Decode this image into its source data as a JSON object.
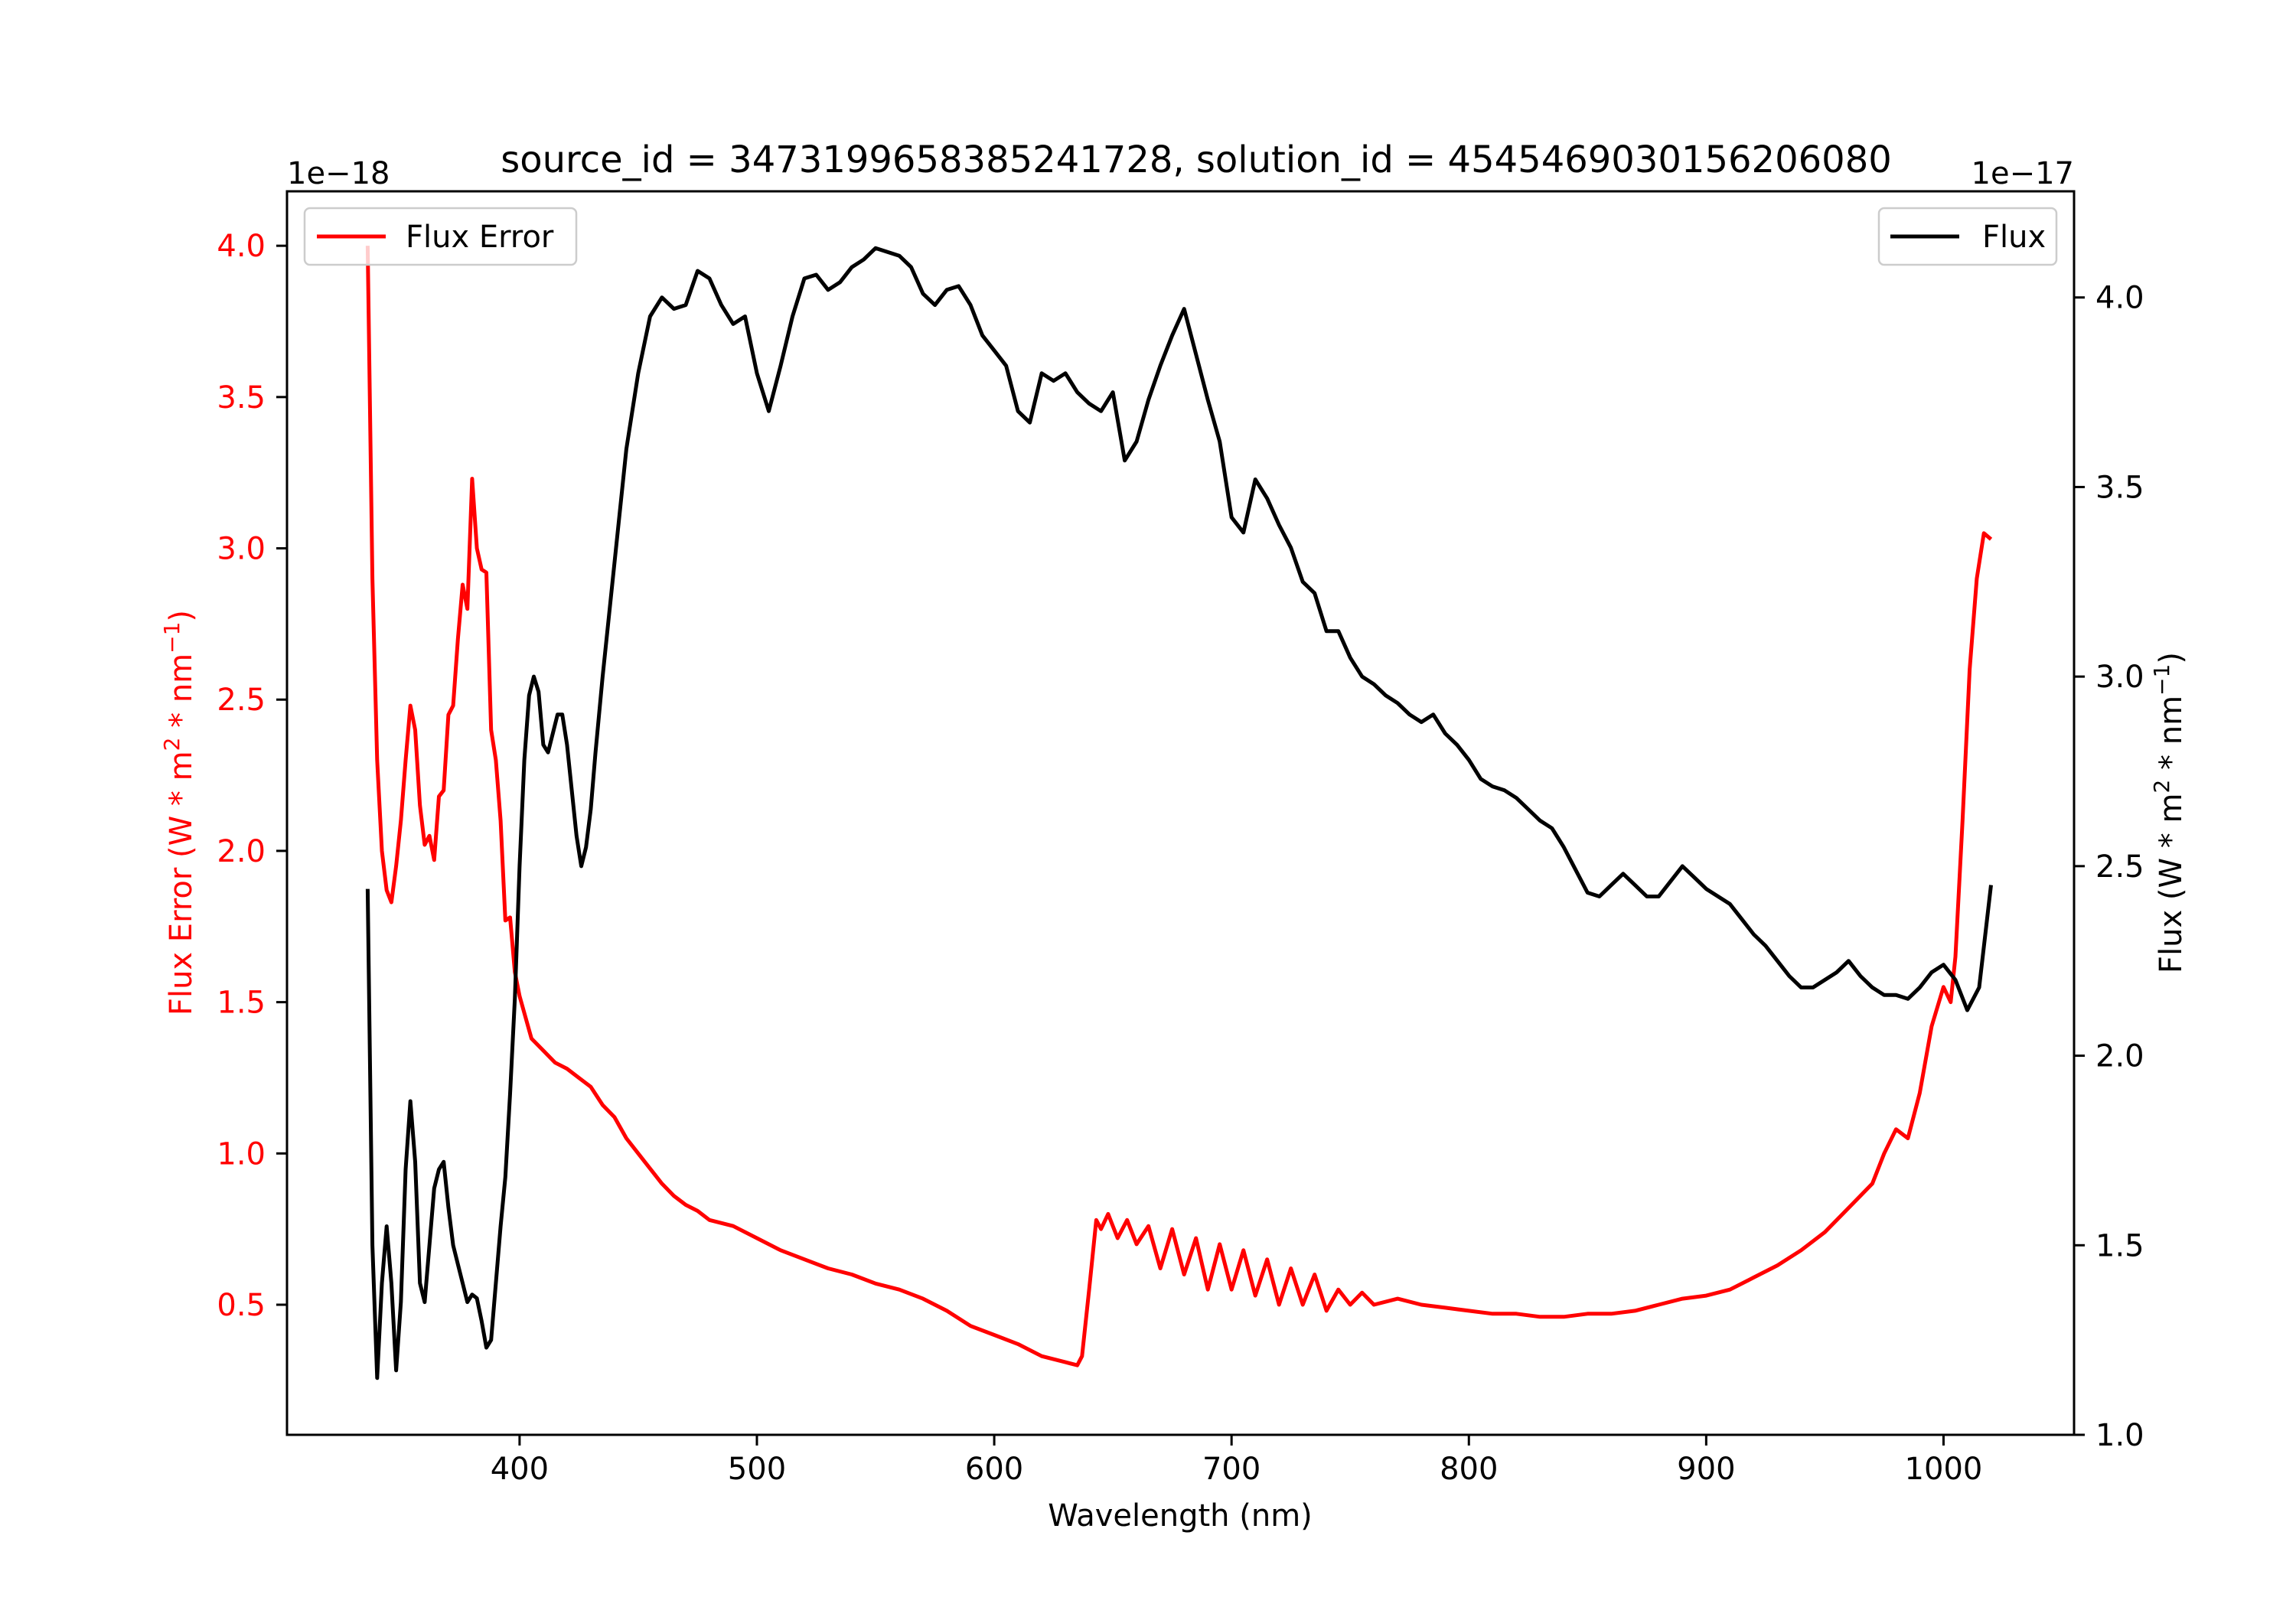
{
  "chart_data": {
    "type": "line",
    "title": "source_id = 3473199658385241728, solution_id = 4545469030156206080",
    "xlabel": "Wavelength (nm)",
    "ylabel_left": "Flux Error (W * m",
    "ylabel_left_sup": "2",
    "ylabel_left_tail": " * nm",
    "ylabel_left_sup2": "−1",
    "ylabel_left_close": ")",
    "ylabel_right": "Flux (W * m",
    "ylabel_right_sup": "2",
    "ylabel_right_tail": " * nm",
    "ylabel_right_sup2": "−1",
    "ylabel_right_close": ")",
    "left_offset_text": "1e−18",
    "right_offset_text": "1e−17",
    "xlim": [
      302,
      1055
    ],
    "ylim_left": [
      0.07,
      4.18
    ],
    "ylim_right": [
      1.0,
      4.28
    ],
    "xticks": [
      400,
      500,
      600,
      700,
      800,
      900,
      1000
    ],
    "xtick_labels": [
      "400",
      "500",
      "600",
      "700",
      "800",
      "900",
      "1000"
    ],
    "yticks_left": [
      0.5,
      1.0,
      1.5,
      2.0,
      2.5,
      3.0,
      3.5,
      4.0
    ],
    "ytick_labels_left": [
      "0.5",
      "1.0",
      "1.5",
      "2.0",
      "2.5",
      "3.0",
      "3.5",
      "4.0"
    ],
    "yticks_right": [
      1.0,
      1.5,
      2.0,
      2.5,
      3.0,
      3.5,
      4.0
    ],
    "ytick_labels_right": [
      "1.0",
      "1.5",
      "2.0",
      "2.5",
      "3.0",
      "3.5",
      "4.0"
    ],
    "legend_left": {
      "label": "Flux Error",
      "placement": "upper left"
    },
    "legend_right": {
      "label": "Flux",
      "placement": "upper right"
    },
    "grid": false,
    "series": [
      {
        "name": "Flux Error",
        "axis": "left",
        "color": "#ff0000",
        "x": [
          336,
          338,
          340,
          342,
          344,
          346,
          348,
          350,
          352,
          354,
          356,
          358,
          360,
          362,
          364,
          366,
          368,
          370,
          372,
          374,
          376,
          378,
          380,
          382,
          384,
          386,
          388,
          390,
          392,
          394,
          396,
          398,
          400,
          405,
          410,
          415,
          420,
          425,
          430,
          435,
          440,
          445,
          450,
          455,
          460,
          465,
          470,
          475,
          480,
          490,
          500,
          510,
          520,
          530,
          540,
          550,
          560,
          570,
          580,
          590,
          600,
          610,
          620,
          630,
          635,
          637,
          640,
          643,
          645,
          648,
          652,
          656,
          660,
          665,
          670,
          675,
          680,
          685,
          690,
          695,
          700,
          705,
          710,
          715,
          720,
          725,
          730,
          735,
          740,
          745,
          750,
          755,
          760,
          770,
          780,
          790,
          800,
          810,
          820,
          830,
          840,
          850,
          860,
          870,
          880,
          890,
          900,
          910,
          920,
          930,
          940,
          950,
          960,
          970,
          975,
          980,
          985,
          990,
          995,
          1000,
          1003,
          1005,
          1008,
          1011,
          1014,
          1017,
          1020
        ],
        "y": [
          4.0,
          2.9,
          2.3,
          2.0,
          1.87,
          1.83,
          1.95,
          2.1,
          2.3,
          2.48,
          2.4,
          2.15,
          2.02,
          2.05,
          1.97,
          2.18,
          2.2,
          2.45,
          2.48,
          2.7,
          2.88,
          2.8,
          3.23,
          3.0,
          2.93,
          2.92,
          2.4,
          2.3,
          2.1,
          1.77,
          1.78,
          1.6,
          1.52,
          1.38,
          1.34,
          1.3,
          1.28,
          1.25,
          1.22,
          1.16,
          1.12,
          1.05,
          1.0,
          0.95,
          0.9,
          0.86,
          0.83,
          0.81,
          0.78,
          0.76,
          0.72,
          0.68,
          0.65,
          0.62,
          0.6,
          0.57,
          0.55,
          0.52,
          0.48,
          0.43,
          0.4,
          0.37,
          0.33,
          0.31,
          0.3,
          0.33,
          0.55,
          0.78,
          0.75,
          0.8,
          0.72,
          0.78,
          0.7,
          0.76,
          0.62,
          0.75,
          0.6,
          0.72,
          0.55,
          0.7,
          0.55,
          0.68,
          0.53,
          0.65,
          0.5,
          0.62,
          0.5,
          0.6,
          0.48,
          0.55,
          0.5,
          0.54,
          0.5,
          0.52,
          0.5,
          0.49,
          0.48,
          0.47,
          0.47,
          0.46,
          0.46,
          0.47,
          0.47,
          0.48,
          0.5,
          0.52,
          0.53,
          0.55,
          0.59,
          0.63,
          0.68,
          0.74,
          0.82,
          0.9,
          1.0,
          1.08,
          1.05,
          1.2,
          1.42,
          1.55,
          1.5,
          1.65,
          2.1,
          2.6,
          2.9,
          3.05,
          3.03
        ]
      },
      {
        "name": "Flux",
        "axis": "right",
        "color": "#000000",
        "x": [
          336,
          338,
          340,
          342,
          344,
          346,
          348,
          350,
          352,
          354,
          356,
          358,
          360,
          362,
          364,
          366,
          368,
          370,
          372,
          374,
          376,
          378,
          380,
          382,
          384,
          386,
          388,
          390,
          392,
          394,
          396,
          398,
          400,
          402,
          404,
          406,
          408,
          410,
          412,
          414,
          416,
          418,
          420,
          422,
          424,
          426,
          428,
          430,
          432,
          435,
          440,
          445,
          450,
          455,
          460,
          465,
          470,
          475,
          480,
          485,
          490,
          495,
          500,
          505,
          510,
          515,
          520,
          525,
          530,
          535,
          540,
          545,
          550,
          555,
          560,
          565,
          570,
          575,
          580,
          585,
          590,
          595,
          600,
          605,
          610,
          615,
          620,
          625,
          630,
          635,
          640,
          645,
          650,
          655,
          660,
          665,
          670,
          675,
          680,
          685,
          690,
          695,
          700,
          705,
          710,
          715,
          720,
          725,
          730,
          735,
          740,
          745,
          750,
          755,
          760,
          765,
          770,
          775,
          780,
          785,
          790,
          795,
          800,
          805,
          810,
          815,
          820,
          825,
          830,
          835,
          840,
          845,
          850,
          855,
          860,
          865,
          870,
          875,
          880,
          885,
          890,
          895,
          900,
          905,
          910,
          915,
          920,
          925,
          930,
          935,
          940,
          945,
          950,
          955,
          960,
          965,
          970,
          975,
          980,
          985,
          990,
          995,
          1000,
          1005,
          1010,
          1015,
          1020
        ],
        "y": [
          2.44,
          1.5,
          1.15,
          1.4,
          1.55,
          1.4,
          1.17,
          1.35,
          1.7,
          1.88,
          1.72,
          1.4,
          1.35,
          1.5,
          1.65,
          1.7,
          1.72,
          1.6,
          1.5,
          1.45,
          1.4,
          1.35,
          1.37,
          1.36,
          1.3,
          1.23,
          1.25,
          1.4,
          1.55,
          1.68,
          1.9,
          2.15,
          2.5,
          2.78,
          2.95,
          3.0,
          2.96,
          2.82,
          2.8,
          2.85,
          2.9,
          2.9,
          2.82,
          2.7,
          2.58,
          2.5,
          2.55,
          2.65,
          2.8,
          3.0,
          3.3,
          3.6,
          3.8,
          3.95,
          4.0,
          3.97,
          3.98,
          4.07,
          4.05,
          3.98,
          3.93,
          3.95,
          3.8,
          3.7,
          3.82,
          3.95,
          4.05,
          4.06,
          4.02,
          4.04,
          4.08,
          4.1,
          4.13,
          4.12,
          4.11,
          4.08,
          4.01,
          3.98,
          4.02,
          4.03,
          3.98,
          3.9,
          3.86,
          3.82,
          3.7,
          3.67,
          3.8,
          3.78,
          3.8,
          3.75,
          3.72,
          3.7,
          3.75,
          3.57,
          3.62,
          3.73,
          3.82,
          3.9,
          3.97,
          3.85,
          3.73,
          3.62,
          3.42,
          3.38,
          3.52,
          3.47,
          3.4,
          3.34,
          3.25,
          3.22,
          3.12,
          3.12,
          3.05,
          3.0,
          2.98,
          2.95,
          2.93,
          2.9,
          2.88,
          2.9,
          2.85,
          2.82,
          2.78,
          2.73,
          2.71,
          2.7,
          2.68,
          2.65,
          2.62,
          2.6,
          2.55,
          2.49,
          2.43,
          2.42,
          2.45,
          2.48,
          2.45,
          2.42,
          2.42,
          2.46,
          2.5,
          2.47,
          2.44,
          2.42,
          2.4,
          2.36,
          2.32,
          2.29,
          2.25,
          2.21,
          2.18,
          2.18,
          2.2,
          2.22,
          2.25,
          2.21,
          2.18,
          2.16,
          2.16,
          2.15,
          2.18,
          2.22,
          2.24,
          2.2,
          2.12,
          2.18,
          2.45
        ]
      }
    ]
  }
}
